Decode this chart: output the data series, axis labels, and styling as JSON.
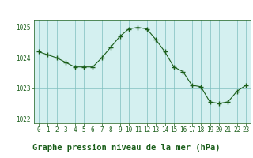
{
  "x": [
    0,
    1,
    2,
    3,
    4,
    5,
    6,
    7,
    8,
    9,
    10,
    11,
    12,
    13,
    14,
    15,
    16,
    17,
    18,
    19,
    20,
    21,
    22,
    23
  ],
  "y": [
    1024.2,
    1024.1,
    1024.0,
    1023.85,
    1023.7,
    1023.7,
    1023.7,
    1024.0,
    1024.35,
    1024.7,
    1024.95,
    1025.0,
    1024.95,
    1024.6,
    1024.2,
    1023.7,
    1023.55,
    1023.1,
    1023.05,
    1022.55,
    1022.5,
    1022.55,
    1022.9,
    1023.1
  ],
  "line_color": "#1a5e1a",
  "marker_color": "#1a5e1a",
  "plot_bg_color": "#d4f0f0",
  "fig_bg_color": "#ffffff",
  "label_bg_color": "#d4f0f0",
  "grid_color": "#7fbfbf",
  "xlabel": "Graphe pression niveau de la mer (hPa)",
  "xlabel_color": "#1a5e1a",
  "xlabel_fontsize": 7.5,
  "xlim": [
    -0.5,
    23.5
  ],
  "ylim": [
    1021.85,
    1025.25
  ],
  "yticks": [
    1022,
    1023,
    1024,
    1025
  ],
  "xticks": [
    0,
    1,
    2,
    3,
    4,
    5,
    6,
    7,
    8,
    9,
    10,
    11,
    12,
    13,
    14,
    15,
    16,
    17,
    18,
    19,
    20,
    21,
    22,
    23
  ],
  "tick_fontsize": 5.5,
  "figsize": [
    3.2,
    2.0
  ],
  "dpi": 100
}
